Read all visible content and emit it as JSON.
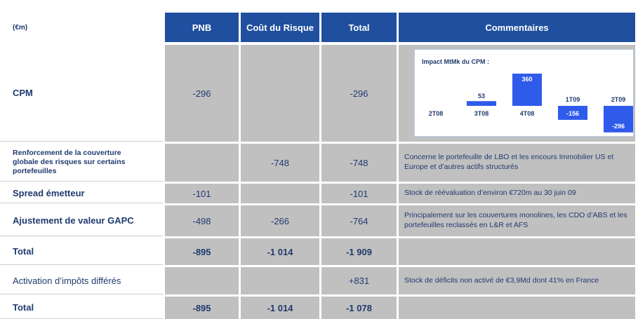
{
  "header": {
    "unit": "(€m)",
    "columns": [
      "PNB",
      "Coût du Risque",
      "Total",
      "Commentaires"
    ]
  },
  "table": {
    "rows": [
      {
        "label": "CPM",
        "pnb": "-296",
        "total": "-296",
        "chart": {
          "type": "bar",
          "title": "Impact MtMk du CPM :",
          "categories": [
            "2T08",
            "3T08",
            "4T08",
            "1T09",
            "2T09"
          ],
          "values": [
            null,
            53,
            360,
            -156,
            -296
          ],
          "color": "#2f5bea"
        }
      },
      {
        "label": "Renforcement de la couverture globale des risques sur certains portefeuilles",
        "cout": "-748",
        "total": "-748",
        "comment": "Concerne le portefeuille de LBO et les encours Immobilier US et Europe et d’autres actifs structurés"
      },
      {
        "label": "Spread émetteur",
        "pnb": "-101",
        "total": "-101",
        "comment": "Stock de réévaluation d’environ €720m au 30 juin 09"
      },
      {
        "label": "Ajustement de valeur GAPC",
        "pnb": "-498",
        "cout": "-266",
        "total": "-764",
        "comment": "Principalement sur les couvertures monolines, les CDO d’ABS et les portefeuilles reclassés en L&R et AFS"
      },
      {
        "label": "Total",
        "pnb": "-895",
        "cout": "-1 014",
        "total": "-1 909"
      },
      {
        "label": "Activation d’impôts différés",
        "total": "+831",
        "comment": "Stock de déficits non activé de €3,9Md dont 41% en France"
      },
      {
        "label": "Total",
        "pnb": "-895",
        "cout": "-1 014",
        "total": "-1 078"
      }
    ]
  }
}
